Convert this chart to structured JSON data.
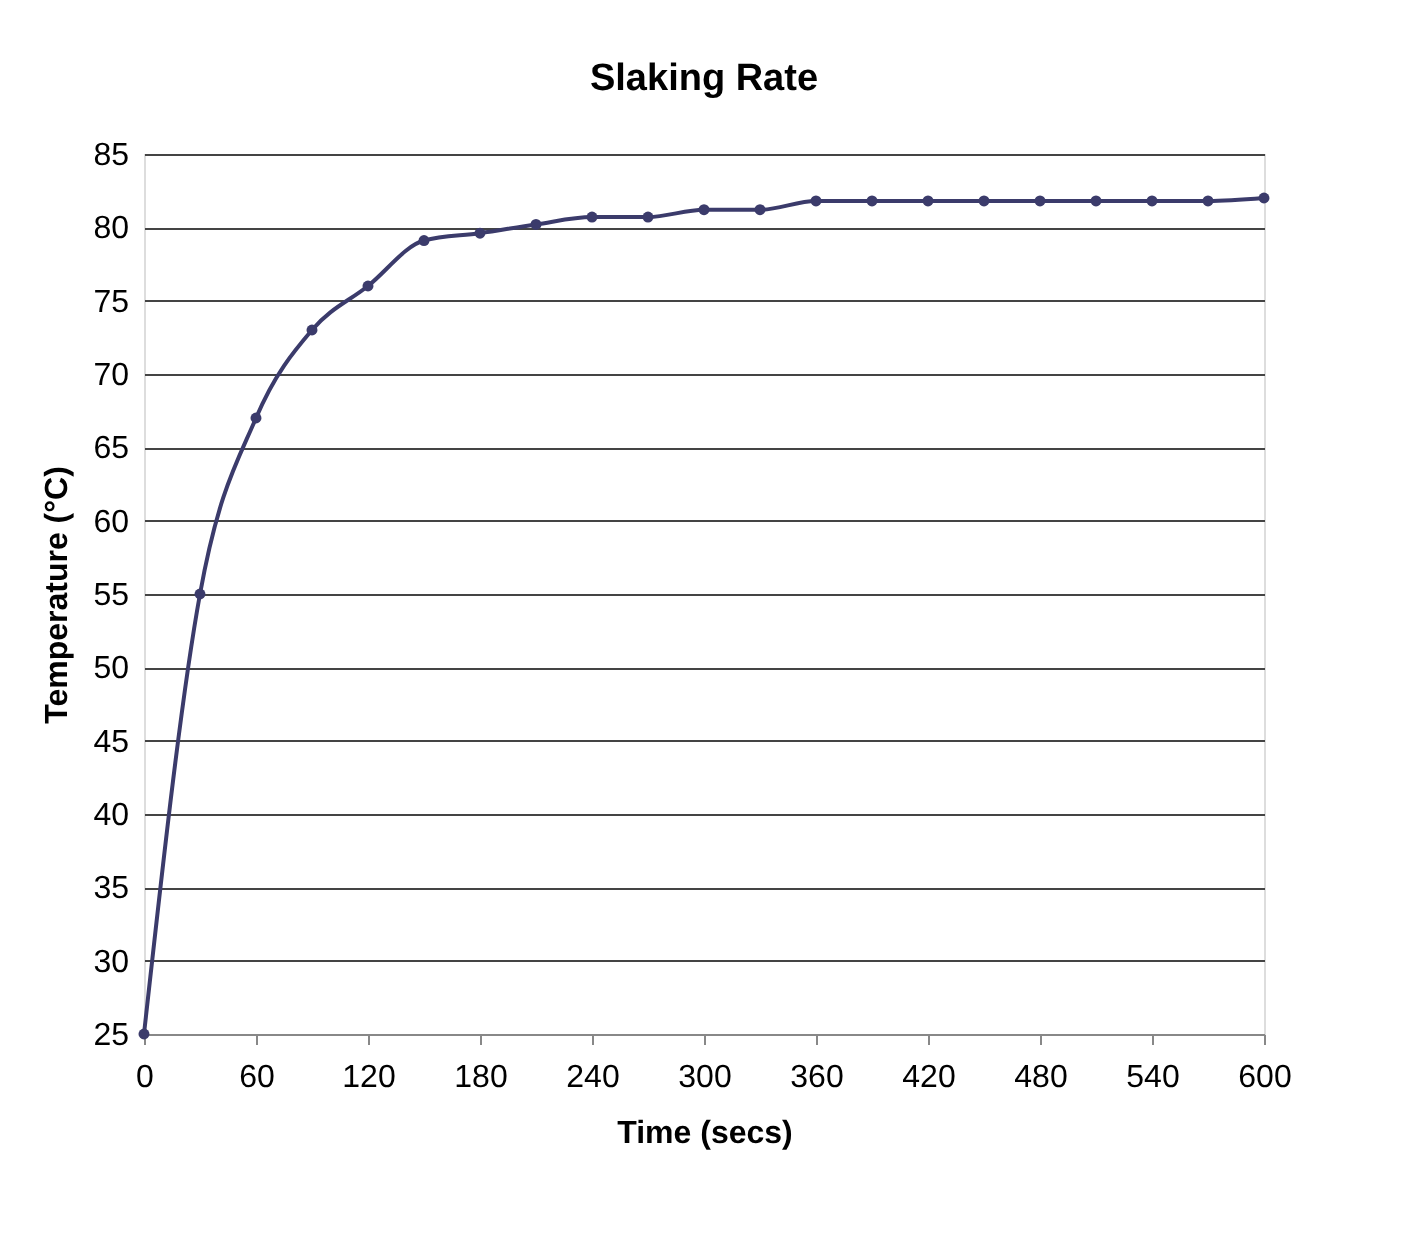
{
  "chart_data": {
    "type": "line",
    "title": "Slaking Rate",
    "xlabel": "Time (secs)",
    "ylabel": "Temperature (°C)",
    "x": [
      0,
      30,
      60,
      90,
      120,
      150,
      180,
      210,
      240,
      270,
      300,
      330,
      360,
      390,
      420,
      450,
      480,
      510,
      540,
      570,
      600
    ],
    "series": [
      {
        "color": "#3b3b6b",
        "values": [
          25,
          55,
          67,
          73,
          76,
          79.1,
          79.6,
          80.2,
          80.7,
          80.7,
          81.2,
          81.2,
          81.8,
          81.8,
          81.8,
          81.8,
          81.8,
          81.8,
          81.8,
          81.8,
          82
        ]
      }
    ],
    "xlim": [
      0,
      600
    ],
    "xticks": [
      0,
      60,
      120,
      180,
      240,
      300,
      360,
      420,
      480,
      540,
      600
    ],
    "ylim": [
      25,
      85
    ],
    "yticks": [
      25,
      30,
      35,
      40,
      45,
      50,
      55,
      60,
      65,
      70,
      75,
      80,
      85
    ],
    "grid": "y",
    "marker": "circle",
    "line_style": "solid",
    "legend": false
  }
}
